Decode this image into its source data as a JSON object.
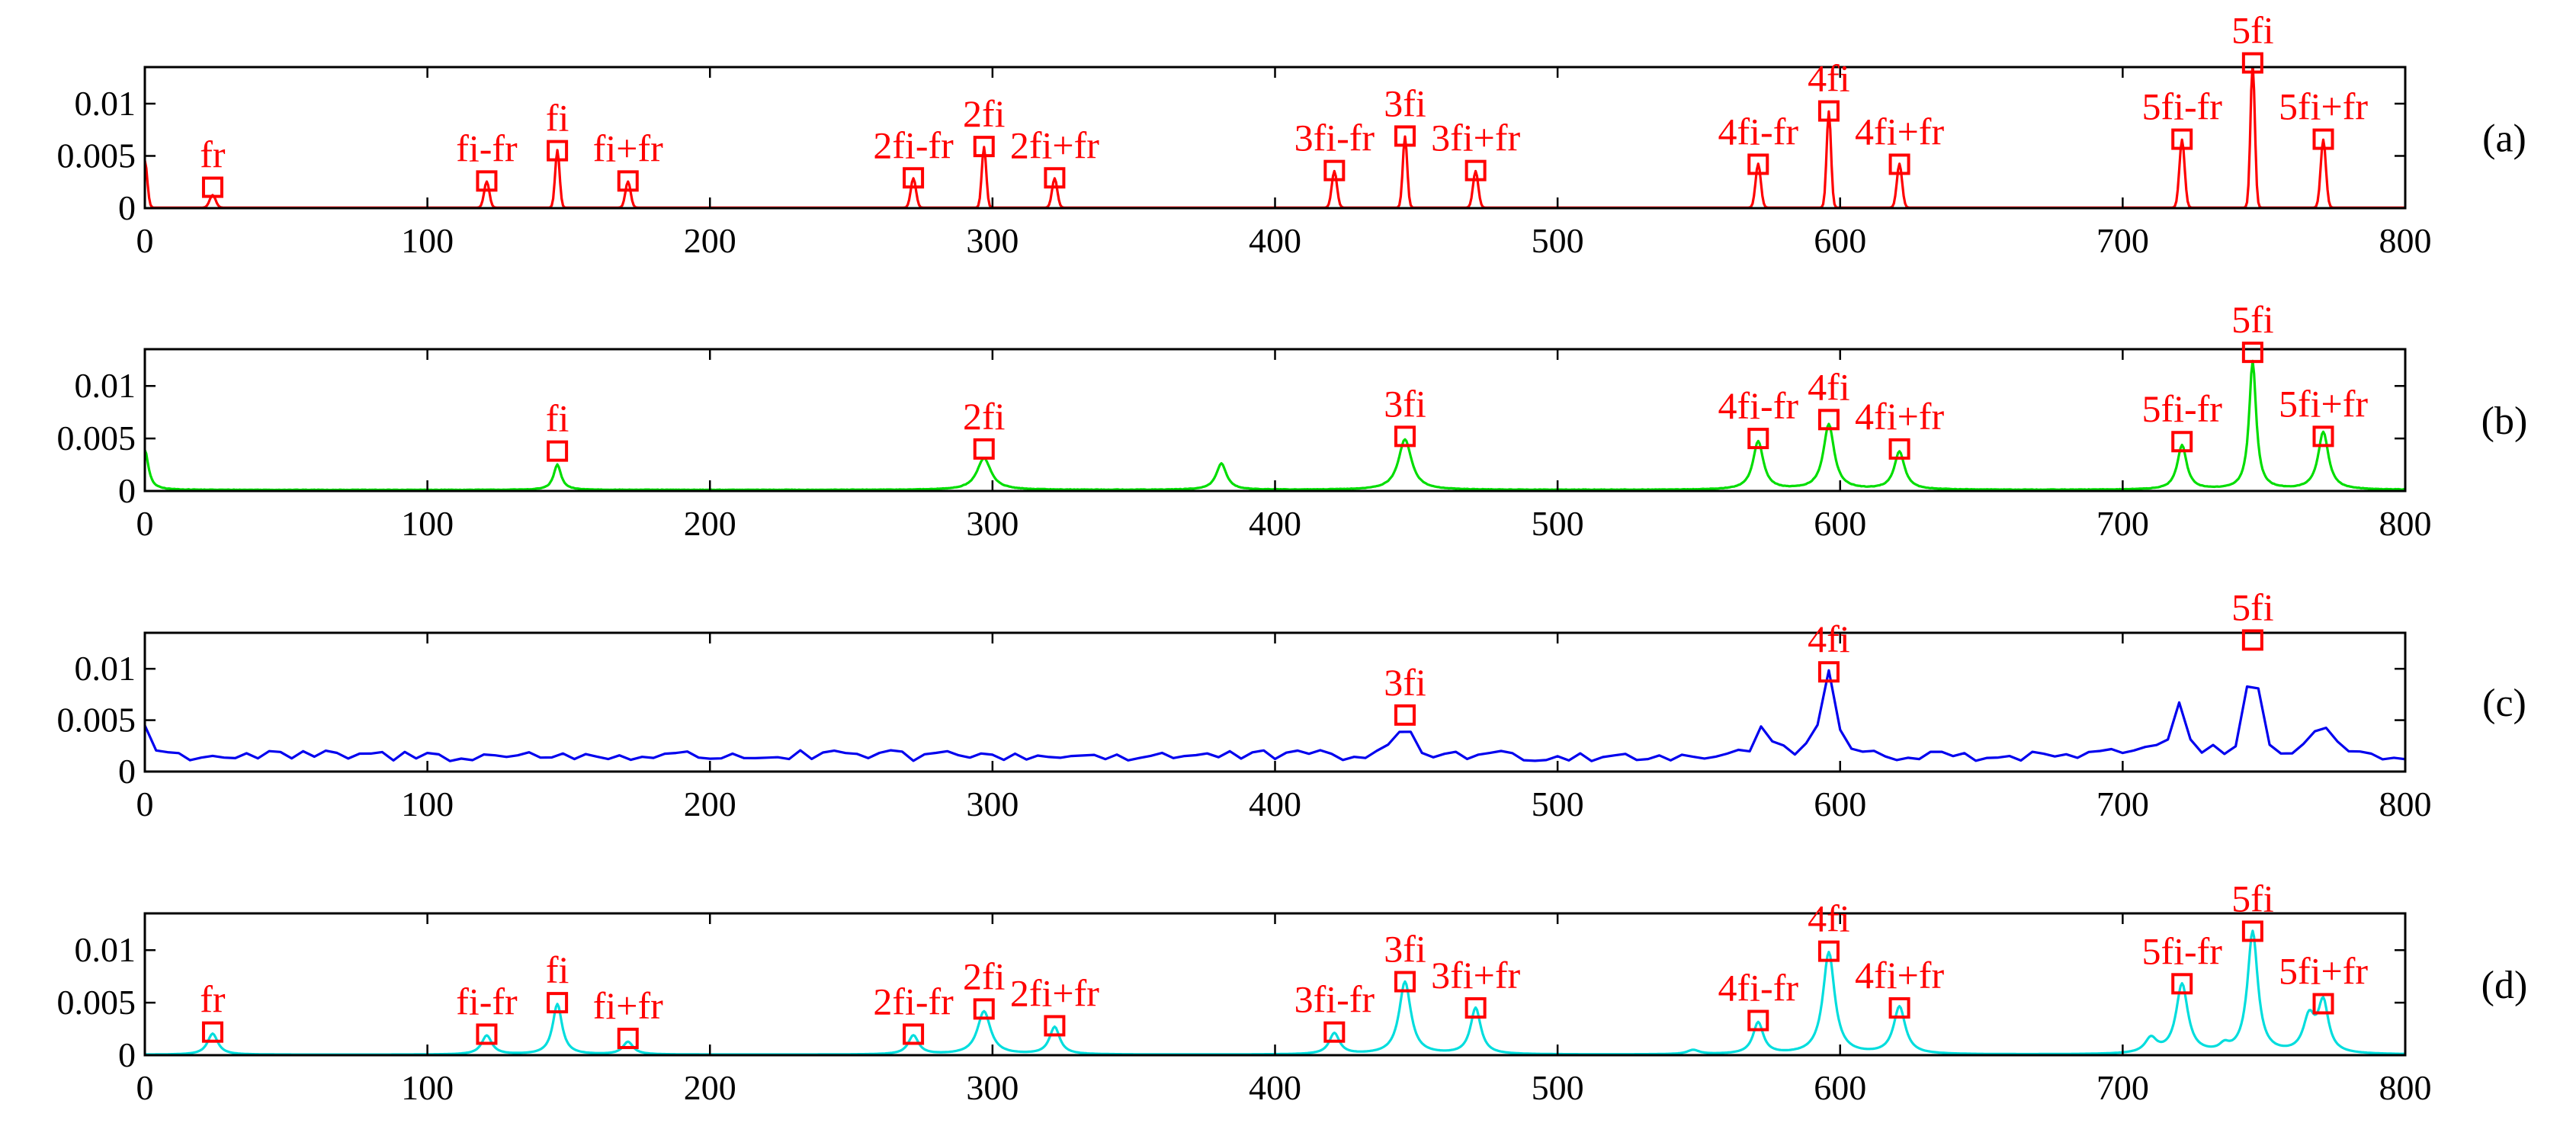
{
  "figure": {
    "background": "#ffffff",
    "marker_color": "#ff0000",
    "label_color": "#ff0000",
    "axis_color": "#000000"
  },
  "chart_data": [
    {
      "type": "line",
      "panel_label": "(a)",
      "line_color": "#ff0000",
      "xlim": [
        0,
        800
      ],
      "ylim": [
        0,
        0.0135
      ],
      "x_ticks": [
        "0",
        "100",
        "200",
        "300",
        "400",
        "500",
        "600",
        "700",
        "800"
      ],
      "y_ticks": [
        "0",
        "0.005",
        "0.01"
      ],
      "grid": false,
      "series": [
        {
          "style": "sharp",
          "baseline": 5e-05,
          "noise": 0,
          "peaks": [
            {
              "x": 0,
              "y": 0.0045,
              "w": 1.2
            },
            {
              "x": 24,
              "y": 0.0012,
              "w": 1.5
            },
            {
              "x": 121,
              "y": 0.0025,
              "w": 1.3
            },
            {
              "x": 146,
              "y": 0.0055,
              "w": 1.1
            },
            {
              "x": 171,
              "y": 0.0025,
              "w": 1.3
            },
            {
              "x": 272,
              "y": 0.0028,
              "w": 1.3
            },
            {
              "x": 297,
              "y": 0.0058,
              "w": 1.1
            },
            {
              "x": 322,
              "y": 0.0028,
              "w": 1.3
            },
            {
              "x": 421,
              "y": 0.0035,
              "w": 1.3
            },
            {
              "x": 446,
              "y": 0.0068,
              "w": 1.1
            },
            {
              "x": 471,
              "y": 0.0035,
              "w": 1.3
            },
            {
              "x": 571,
              "y": 0.0042,
              "w": 1.3
            },
            {
              "x": 596,
              "y": 0.0092,
              "w": 1.1
            },
            {
              "x": 621,
              "y": 0.0042,
              "w": 1.3
            },
            {
              "x": 721,
              "y": 0.0065,
              "w": 1.3
            },
            {
              "x": 746,
              "y": 0.0138,
              "w": 1.1
            },
            {
              "x": 771,
              "y": 0.0065,
              "w": 1.3
            }
          ]
        }
      ],
      "annotations": [
        {
          "text": "fr",
          "x": 24,
          "y": 0.002
        },
        {
          "text": "fi-fr",
          "x": 121,
          "y": 0.0026
        },
        {
          "text": "fi",
          "x": 146,
          "y": 0.0055
        },
        {
          "text": "fi+fr",
          "x": 171,
          "y": 0.0026
        },
        {
          "text": "2fi-fr",
          "x": 272,
          "y": 0.0029
        },
        {
          "text": "2fi",
          "x": 297,
          "y": 0.0059
        },
        {
          "text": "2fi+fr",
          "x": 322,
          "y": 0.0029
        },
        {
          "text": "3fi-fr",
          "x": 421,
          "y": 0.0036
        },
        {
          "text": "3fi",
          "x": 446,
          "y": 0.0069
        },
        {
          "text": "3fi+fr",
          "x": 471,
          "y": 0.0036
        },
        {
          "text": "4fi-fr",
          "x": 571,
          "y": 0.0042
        },
        {
          "text": "4fi",
          "x": 596,
          "y": 0.0093
        },
        {
          "text": "4fi+fr",
          "x": 621,
          "y": 0.0042
        },
        {
          "text": "5fi-fr",
          "x": 721,
          "y": 0.0066
        },
        {
          "text": "5fi",
          "x": 746,
          "y": 0.0139
        },
        {
          "text": "5fi+fr",
          "x": 771,
          "y": 0.0066
        }
      ]
    },
    {
      "type": "line",
      "panel_label": "(b)",
      "line_color": "#00dd00",
      "xlim": [
        0,
        800
      ],
      "ylim": [
        0,
        0.0135
      ],
      "x_ticks": [
        "0",
        "100",
        "200",
        "300",
        "400",
        "500",
        "600",
        "700",
        "800"
      ],
      "y_ticks": [
        "0",
        "0.005",
        "0.01"
      ],
      "grid": false,
      "series": [
        {
          "style": "broad",
          "baseline": 0.0001,
          "noise": 4e-05,
          "peaks": [
            {
              "x": 0,
              "y": 0.0038,
              "w": 1.5
            },
            {
              "x": 146,
              "y": 0.0024,
              "w": 1.6
            },
            {
              "x": 297,
              "y": 0.003,
              "w": 3.0
            },
            {
              "x": 381,
              "y": 0.0025,
              "w": 2.2
            },
            {
              "x": 446,
              "y": 0.0048,
              "w": 2.8
            },
            {
              "x": 571,
              "y": 0.0046,
              "w": 2.2
            },
            {
              "x": 596,
              "y": 0.0062,
              "w": 2.3
            },
            {
              "x": 621,
              "y": 0.0036,
              "w": 2.2
            },
            {
              "x": 721,
              "y": 0.0042,
              "w": 2.0
            },
            {
              "x": 746,
              "y": 0.0122,
              "w": 1.5
            },
            {
              "x": 771,
              "y": 0.0055,
              "w": 2.2
            }
          ]
        }
      ],
      "annotations": [
        {
          "text": "fi",
          "x": 146,
          "y": 0.0038
        },
        {
          "text": "2fi",
          "x": 297,
          "y": 0.004
        },
        {
          "text": "3fi",
          "x": 446,
          "y": 0.0052
        },
        {
          "text": "4fi-fr",
          "x": 571,
          "y": 0.005
        },
        {
          "text": "4fi",
          "x": 596,
          "y": 0.0068
        },
        {
          "text": "4fi+fr",
          "x": 621,
          "y": 0.004
        },
        {
          "text": "5fi-fr",
          "x": 721,
          "y": 0.0047
        },
        {
          "text": "5fi",
          "x": 746,
          "y": 0.0132
        },
        {
          "text": "5fi+fr",
          "x": 771,
          "y": 0.0052
        }
      ]
    },
    {
      "type": "line",
      "panel_label": "(c)",
      "line_color": "#0000ee",
      "xlim": [
        0,
        800
      ],
      "ylim": [
        0,
        0.0135
      ],
      "x_ticks": [
        "0",
        "100",
        "200",
        "300",
        "400",
        "500",
        "600",
        "700",
        "800"
      ],
      "y_ticks": [
        "0",
        "0.005",
        "0.01"
      ],
      "grid": false,
      "series": [
        {
          "style": "noisy",
          "baseline": 0.0013,
          "noise": 0.0011,
          "peaks": [
            {
              "x": 0,
              "y": 0.003,
              "w": 2.0
            },
            {
              "x": 446,
              "y": 0.0038,
              "w": 2.5
            },
            {
              "x": 573,
              "y": 0.003,
              "w": 3.0
            },
            {
              "x": 596,
              "y": 0.0085,
              "w": 2.5
            },
            {
              "x": 720,
              "y": 0.0055,
              "w": 3.0
            },
            {
              "x": 746,
              "y": 0.0125,
              "w": 2.0
            },
            {
              "x": 771,
              "y": 0.0035,
              "w": 3.0
            }
          ]
        }
      ],
      "annotations": [
        {
          "text": "3fi",
          "x": 446,
          "y": 0.0055
        },
        {
          "text": "4fi",
          "x": 596,
          "y": 0.0097
        },
        {
          "text": "5fi",
          "x": 746,
          "y": 0.0128
        }
      ]
    },
    {
      "type": "line",
      "panel_label": "(d)",
      "line_color": "#00dddd",
      "xlim": [
        0,
        800
      ],
      "ylim": [
        0,
        0.0135
      ],
      "x_ticks": [
        "0",
        "100",
        "200",
        "300",
        "400",
        "500",
        "600",
        "700",
        "800"
      ],
      "y_ticks": [
        "0",
        "0.005",
        "0.01"
      ],
      "grid": false,
      "series": [
        {
          "style": "smooth",
          "baseline": 5e-05,
          "noise": 0,
          "peaks": [
            {
              "x": 24,
              "y": 0.002,
              "w": 2.2
            },
            {
              "x": 121,
              "y": 0.0018,
              "w": 2.2
            },
            {
              "x": 146,
              "y": 0.0048,
              "w": 2.0
            },
            {
              "x": 171,
              "y": 0.0012,
              "w": 2.2
            },
            {
              "x": 272,
              "y": 0.0018,
              "w": 2.2
            },
            {
              "x": 297,
              "y": 0.0041,
              "w": 2.8
            },
            {
              "x": 322,
              "y": 0.0026,
              "w": 2.2
            },
            {
              "x": 421,
              "y": 0.002,
              "w": 2.2
            },
            {
              "x": 446,
              "y": 0.0069,
              "w": 2.5
            },
            {
              "x": 471,
              "y": 0.0044,
              "w": 2.2
            },
            {
              "x": 548,
              "y": 0.0004,
              "w": 2.5
            },
            {
              "x": 571,
              "y": 0.003,
              "w": 2.2
            },
            {
              "x": 596,
              "y": 0.0097,
              "w": 2.5
            },
            {
              "x": 621,
              "y": 0.0045,
              "w": 2.5
            },
            {
              "x": 710,
              "y": 0.0014,
              "w": 2.5
            },
            {
              "x": 721,
              "y": 0.0066,
              "w": 2.5
            },
            {
              "x": 736,
              "y": 0.0006,
              "w": 2.0
            },
            {
              "x": 746,
              "y": 0.0116,
              "w": 2.2
            },
            {
              "x": 766,
              "y": 0.0033,
              "w": 2.5
            },
            {
              "x": 771,
              "y": 0.0047,
              "w": 2.2
            }
          ]
        }
      ],
      "annotations": [
        {
          "text": "fr",
          "x": 24,
          "y": 0.0022
        },
        {
          "text": "fi-fr",
          "x": 121,
          "y": 0.002
        },
        {
          "text": "fi",
          "x": 146,
          "y": 0.005
        },
        {
          "text": "fi+fr",
          "x": 171,
          "y": 0.0016
        },
        {
          "text": "2fi-fr",
          "x": 272,
          "y": 0.002
        },
        {
          "text": "2fi",
          "x": 297,
          "y": 0.0044
        },
        {
          "text": "2fi+fr",
          "x": 322,
          "y": 0.0028
        },
        {
          "text": "3fi-fr",
          "x": 421,
          "y": 0.0022
        },
        {
          "text": "3fi",
          "x": 446,
          "y": 0.007
        },
        {
          "text": "3fi+fr",
          "x": 471,
          "y": 0.0045
        },
        {
          "text": "4fi-fr",
          "x": 571,
          "y": 0.0033
        },
        {
          "text": "4fi",
          "x": 596,
          "y": 0.0099
        },
        {
          "text": "4fi+fr",
          "x": 621,
          "y": 0.0045
        },
        {
          "text": "5fi-fr",
          "x": 721,
          "y": 0.0068
        },
        {
          "text": "5fi",
          "x": 746,
          "y": 0.0118
        },
        {
          "text": "5fi+fr",
          "x": 771,
          "y": 0.0049
        }
      ]
    }
  ]
}
